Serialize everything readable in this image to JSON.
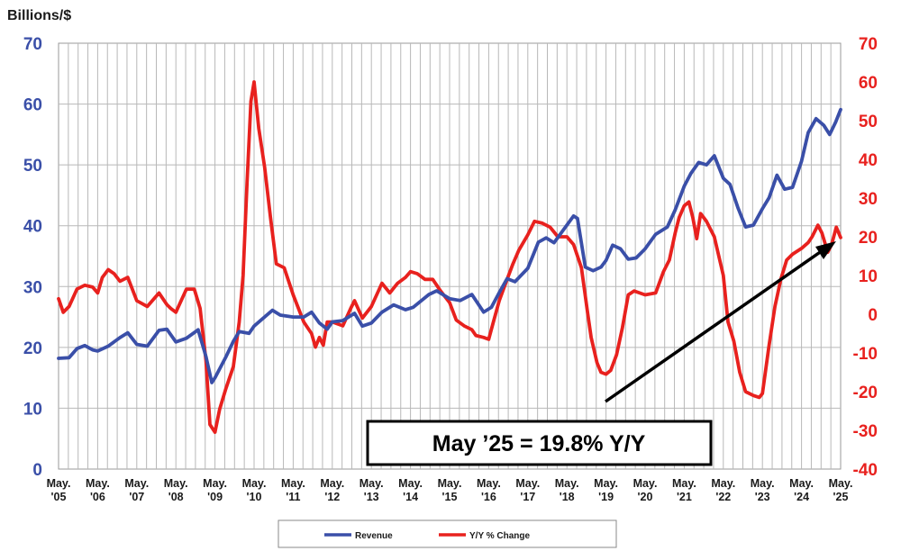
{
  "chart_data": {
    "type": "line",
    "ylabel": "Billions/$",
    "y_left": {
      "lim": [
        0,
        70
      ],
      "ticks": [
        "0",
        "10",
        "20",
        "30",
        "40",
        "50",
        "60",
        "70"
      ],
      "color": "#3a4fa8"
    },
    "y_right": {
      "lim": [
        -40,
        70
      ],
      "ticks": [
        "-40",
        "-30",
        "-20",
        "-10",
        "0",
        "10",
        "20",
        "30",
        "40",
        "50",
        "60",
        "70"
      ],
      "color": "#e8211e"
    },
    "x_ticks": [
      {
        "line1": "May.",
        "line2": "'05"
      },
      {
        "line1": "May.",
        "line2": "'06"
      },
      {
        "line1": "May.",
        "line2": "'07"
      },
      {
        "line1": "May.",
        "line2": "'08"
      },
      {
        "line1": "May.",
        "line2": "'09"
      },
      {
        "line1": "May.",
        "line2": "'10"
      },
      {
        "line1": "May.",
        "line2": "'11"
      },
      {
        "line1": "May.",
        "line2": "'12"
      },
      {
        "line1": "May.",
        "line2": "'13"
      },
      {
        "line1": "May.",
        "line2": "'14"
      },
      {
        "line1": "May.",
        "line2": "'15"
      },
      {
        "line1": "May.",
        "line2": "'16"
      },
      {
        "line1": "May.",
        "line2": "'17"
      },
      {
        "line1": "May.",
        "line2": "'18"
      },
      {
        "line1": "May.",
        "line2": "'19"
      },
      {
        "line1": "May.",
        "line2": "'20"
      },
      {
        "line1": "May.",
        "line2": "'21"
      },
      {
        "line1": "May.",
        "line2": "'22"
      },
      {
        "line1": "May.",
        "line2": "'23"
      },
      {
        "line1": "May.",
        "line2": "'24"
      },
      {
        "line1": "May.",
        "line2": "'25"
      }
    ],
    "x_range": [
      2005.33,
      2025.33
    ],
    "grid": true,
    "legend_position": "bottom",
    "annotation": "May ’25 = 19.8% Y/Y",
    "series": [
      {
        "name": "Revenue",
        "axis": "left",
        "color": "#3a4fa8",
        "points": [
          [
            2005.33,
            18.2
          ],
          [
            2005.6,
            18.3
          ],
          [
            2005.8,
            19.8
          ],
          [
            2006.0,
            20.3
          ],
          [
            2006.2,
            19.6
          ],
          [
            2006.33,
            19.4
          ],
          [
            2006.6,
            20.2
          ],
          [
            2006.9,
            21.6
          ],
          [
            2007.1,
            22.4
          ],
          [
            2007.33,
            20.5
          ],
          [
            2007.6,
            20.2
          ],
          [
            2007.9,
            22.8
          ],
          [
            2008.1,
            23.0
          ],
          [
            2008.33,
            20.9
          ],
          [
            2008.6,
            21.5
          ],
          [
            2008.9,
            22.9
          ],
          [
            2009.1,
            18.5
          ],
          [
            2009.25,
            14.2
          ],
          [
            2009.33,
            15.0
          ],
          [
            2009.6,
            18.3
          ],
          [
            2009.8,
            21.0
          ],
          [
            2009.95,
            22.6
          ],
          [
            2010.2,
            22.3
          ],
          [
            2010.33,
            23.5
          ],
          [
            2010.6,
            25.0
          ],
          [
            2010.8,
            26.1
          ],
          [
            2011.0,
            25.3
          ],
          [
            2011.33,
            25.0
          ],
          [
            2011.6,
            25.0
          ],
          [
            2011.8,
            25.8
          ],
          [
            2012.0,
            24.0
          ],
          [
            2012.2,
            23.0
          ],
          [
            2012.33,
            24.2
          ],
          [
            2012.6,
            24.4
          ],
          [
            2012.9,
            25.6
          ],
          [
            2013.1,
            23.5
          ],
          [
            2013.33,
            24.0
          ],
          [
            2013.6,
            25.8
          ],
          [
            2013.9,
            27.0
          ],
          [
            2014.2,
            26.2
          ],
          [
            2014.4,
            26.6
          ],
          [
            2014.8,
            28.7
          ],
          [
            2015.0,
            29.3
          ],
          [
            2015.33,
            28.0
          ],
          [
            2015.6,
            27.7
          ],
          [
            2015.9,
            28.7
          ],
          [
            2016.2,
            25.8
          ],
          [
            2016.4,
            26.6
          ],
          [
            2016.6,
            29.0
          ],
          [
            2016.8,
            31.3
          ],
          [
            2017.0,
            30.8
          ],
          [
            2017.33,
            33.0
          ],
          [
            2017.6,
            37.3
          ],
          [
            2017.8,
            38.0
          ],
          [
            2018.0,
            37.2
          ],
          [
            2018.33,
            40.1
          ],
          [
            2018.5,
            41.6
          ],
          [
            2018.6,
            41.2
          ],
          [
            2018.8,
            33.2
          ],
          [
            2019.0,
            32.6
          ],
          [
            2019.2,
            33.2
          ],
          [
            2019.33,
            34.3
          ],
          [
            2019.5,
            36.8
          ],
          [
            2019.7,
            36.2
          ],
          [
            2019.9,
            34.5
          ],
          [
            2020.1,
            34.7
          ],
          [
            2020.33,
            36.2
          ],
          [
            2020.6,
            38.6
          ],
          [
            2020.9,
            39.8
          ],
          [
            2021.1,
            42.6
          ],
          [
            2021.33,
            46.5
          ],
          [
            2021.5,
            48.6
          ],
          [
            2021.7,
            50.4
          ],
          [
            2021.9,
            50.0
          ],
          [
            2022.1,
            51.5
          ],
          [
            2022.33,
            47.8
          ],
          [
            2022.5,
            46.8
          ],
          [
            2022.7,
            43.0
          ],
          [
            2022.9,
            39.8
          ],
          [
            2023.1,
            40.1
          ],
          [
            2023.33,
            42.8
          ],
          [
            2023.5,
            44.6
          ],
          [
            2023.7,
            48.3
          ],
          [
            2023.9,
            46.0
          ],
          [
            2024.1,
            46.3
          ],
          [
            2024.33,
            50.6
          ],
          [
            2024.5,
            55.3
          ],
          [
            2024.7,
            57.6
          ],
          [
            2024.9,
            56.5
          ],
          [
            2025.05,
            55.0
          ],
          [
            2025.2,
            57.0
          ],
          [
            2025.33,
            59.1
          ]
        ]
      },
      {
        "name": "Y/Y % Change",
        "axis": "right",
        "color": "#e8211e",
        "points": [
          [
            2005.33,
            4.0
          ],
          [
            2005.45,
            0.5
          ],
          [
            2005.6,
            2.0
          ],
          [
            2005.8,
            6.5
          ],
          [
            2006.0,
            7.5
          ],
          [
            2006.2,
            7.0
          ],
          [
            2006.33,
            5.5
          ],
          [
            2006.45,
            9.5
          ],
          [
            2006.6,
            11.5
          ],
          [
            2006.75,
            10.5
          ],
          [
            2006.9,
            8.5
          ],
          [
            2007.1,
            9.5
          ],
          [
            2007.33,
            3.5
          ],
          [
            2007.6,
            2.0
          ],
          [
            2007.9,
            5.5
          ],
          [
            2008.1,
            2.5
          ],
          [
            2008.2,
            1.5
          ],
          [
            2008.33,
            0.5
          ],
          [
            2008.6,
            6.5
          ],
          [
            2008.8,
            6.5
          ],
          [
            2008.95,
            1.5
          ],
          [
            2009.1,
            -12.0
          ],
          [
            2009.2,
            -28.5
          ],
          [
            2009.33,
            -30.5
          ],
          [
            2009.45,
            -24.5
          ],
          [
            2009.6,
            -19.5
          ],
          [
            2009.8,
            -13.5
          ],
          [
            2009.95,
            -2.0
          ],
          [
            2010.05,
            10.0
          ],
          [
            2010.15,
            34.0
          ],
          [
            2010.25,
            55.0
          ],
          [
            2010.33,
            60.0
          ],
          [
            2010.45,
            48.0
          ],
          [
            2010.6,
            38.0
          ],
          [
            2010.75,
            25.0
          ],
          [
            2010.9,
            13.0
          ],
          [
            2011.1,
            12.0
          ],
          [
            2011.33,
            5.0
          ],
          [
            2011.6,
            -2.0
          ],
          [
            2011.8,
            -5.0
          ],
          [
            2011.9,
            -8.5
          ],
          [
            2012.0,
            -6.0
          ],
          [
            2012.1,
            -8.0
          ],
          [
            2012.2,
            -2.0
          ],
          [
            2012.33,
            -2.0
          ],
          [
            2012.6,
            -3.0
          ],
          [
            2012.8,
            1.5
          ],
          [
            2012.9,
            3.5
          ],
          [
            2013.1,
            -1.0
          ],
          [
            2013.33,
            2.0
          ],
          [
            2013.6,
            8.0
          ],
          [
            2013.8,
            5.5
          ],
          [
            2014.0,
            8.0
          ],
          [
            2014.2,
            9.5
          ],
          [
            2014.33,
            11.0
          ],
          [
            2014.5,
            10.5
          ],
          [
            2014.7,
            9.0
          ],
          [
            2014.9,
            9.0
          ],
          [
            2015.1,
            6.0
          ],
          [
            2015.33,
            3.0
          ],
          [
            2015.5,
            -1.5
          ],
          [
            2015.7,
            -3.0
          ],
          [
            2015.9,
            -4.0
          ],
          [
            2016.0,
            -5.5
          ],
          [
            2016.2,
            -6.0
          ],
          [
            2016.33,
            -6.5
          ],
          [
            2016.45,
            -2.0
          ],
          [
            2016.6,
            3.5
          ],
          [
            2016.8,
            9.0
          ],
          [
            2016.95,
            13.0
          ],
          [
            2017.1,
            16.5
          ],
          [
            2017.33,
            20.5
          ],
          [
            2017.5,
            24.0
          ],
          [
            2017.7,
            23.5
          ],
          [
            2017.9,
            22.5
          ],
          [
            2018.1,
            20.0
          ],
          [
            2018.33,
            20.0
          ],
          [
            2018.5,
            18.0
          ],
          [
            2018.7,
            12.0
          ],
          [
            2018.85,
            1.0
          ],
          [
            2018.95,
            -6.0
          ],
          [
            2019.1,
            -12.5
          ],
          [
            2019.2,
            -15.0
          ],
          [
            2019.33,
            -15.5
          ],
          [
            2019.45,
            -14.5
          ],
          [
            2019.6,
            -10.5
          ],
          [
            2019.75,
            -3.5
          ],
          [
            2019.9,
            5.0
          ],
          [
            2020.05,
            6.0
          ],
          [
            2020.33,
            5.0
          ],
          [
            2020.6,
            5.5
          ],
          [
            2020.8,
            11.0
          ],
          [
            2020.95,
            14.0
          ],
          [
            2021.1,
            21.0
          ],
          [
            2021.2,
            25.0
          ],
          [
            2021.33,
            28.0
          ],
          [
            2021.45,
            29.0
          ],
          [
            2021.55,
            25.0
          ],
          [
            2021.65,
            19.5
          ],
          [
            2021.75,
            26.0
          ],
          [
            2021.9,
            24.0
          ],
          [
            2022.1,
            20.0
          ],
          [
            2022.33,
            10.0
          ],
          [
            2022.45,
            -2.0
          ],
          [
            2022.6,
            -7.0
          ],
          [
            2022.75,
            -15.0
          ],
          [
            2022.9,
            -20.0
          ],
          [
            2023.1,
            -21.0
          ],
          [
            2023.25,
            -21.5
          ],
          [
            2023.33,
            -20.5
          ],
          [
            2023.5,
            -8.0
          ],
          [
            2023.65,
            2.0
          ],
          [
            2023.8,
            9.0
          ],
          [
            2023.95,
            14.0
          ],
          [
            2024.1,
            15.5
          ],
          [
            2024.33,
            17.0
          ],
          [
            2024.5,
            18.5
          ],
          [
            2024.6,
            20.0
          ],
          [
            2024.75,
            23.0
          ],
          [
            2024.85,
            21.0
          ],
          [
            2025.0,
            16.0
          ],
          [
            2025.1,
            18.0
          ],
          [
            2025.22,
            22.5
          ],
          [
            2025.33,
            19.8
          ]
        ]
      }
    ]
  }
}
